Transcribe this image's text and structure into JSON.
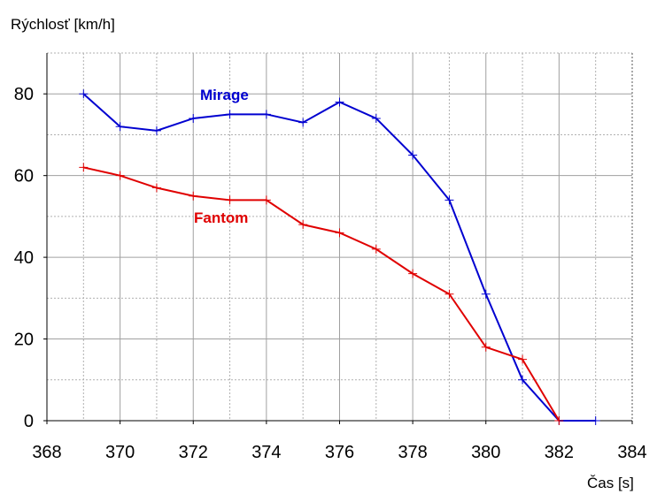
{
  "chart_data": {
    "type": "line",
    "xlabel": "Čas [s]",
    "ylabel": "Rýchlosť [km/h]",
    "xlim": [
      368,
      384
    ],
    "ylim": [
      0,
      90
    ],
    "x_ticks": [
      "368",
      "370",
      "372",
      "374",
      "376",
      "378",
      "380",
      "382",
      "384"
    ],
    "y_ticks": [
      "0",
      "20",
      "40",
      "60",
      "80"
    ],
    "grid": true,
    "series": [
      {
        "name": "Mirage",
        "color": "#0000d0",
        "x": [
          369,
          370,
          371,
          372,
          373,
          374,
          375,
          376,
          377,
          378,
          379,
          380,
          381,
          382,
          383
        ],
        "y": [
          80,
          72,
          71,
          74,
          75,
          75,
          73,
          78,
          74,
          65,
          54,
          31,
          10,
          0,
          0
        ]
      },
      {
        "name": "Fantom",
        "color": "#e00000",
        "x": [
          369,
          370,
          371,
          372,
          373,
          374,
          375,
          376,
          377,
          378,
          379,
          380,
          381,
          382
        ],
        "y": [
          62,
          60,
          57,
          55,
          54,
          54,
          48,
          46,
          42,
          36,
          31,
          18,
          15,
          0
        ]
      }
    ]
  }
}
